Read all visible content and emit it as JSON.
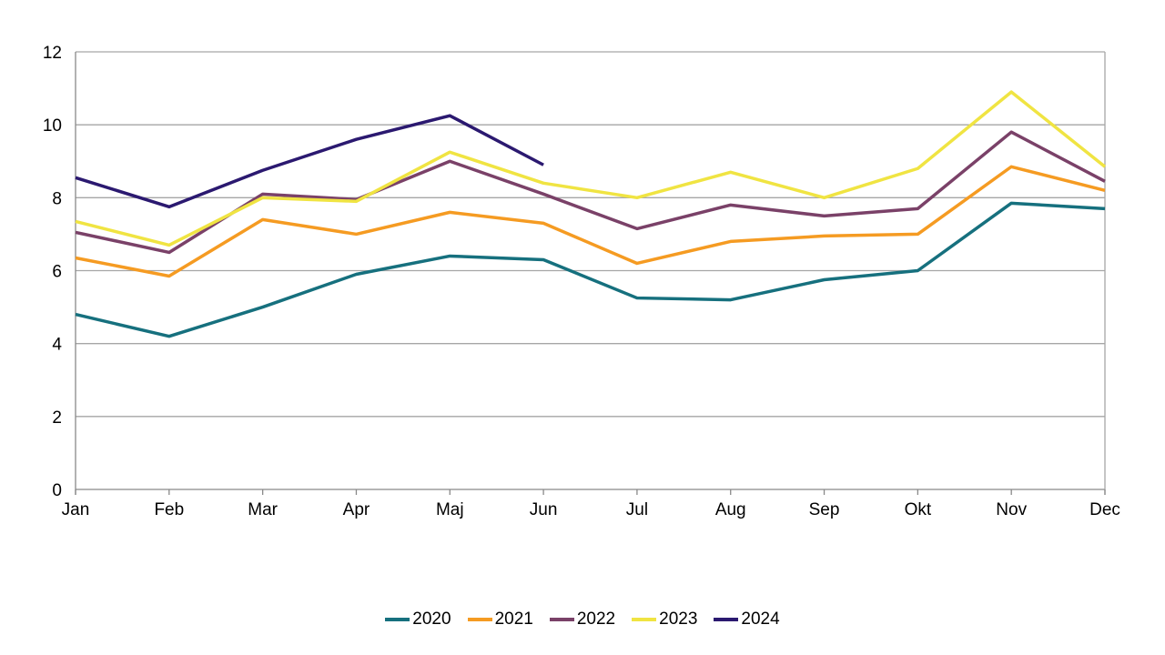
{
  "chart_data": {
    "type": "line",
    "title": "",
    "xlabel": "",
    "ylabel": "",
    "categories": [
      "Jan",
      "Feb",
      "Mar",
      "Apr",
      "Maj",
      "Jun",
      "Jul",
      "Aug",
      "Sep",
      "Okt",
      "Nov",
      "Dec"
    ],
    "series": [
      {
        "name": "2020",
        "color": "#16707E",
        "values": [
          4.8,
          4.2,
          5.0,
          5.9,
          6.4,
          6.3,
          5.25,
          5.2,
          5.75,
          6.0,
          7.85,
          7.7
        ]
      },
      {
        "name": "2021",
        "color": "#F59B22",
        "values": [
          6.35,
          5.85,
          7.4,
          7.0,
          7.6,
          7.3,
          6.2,
          6.8,
          6.95,
          7.0,
          8.85,
          8.2
        ]
      },
      {
        "name": "2022",
        "color": "#7A4168",
        "values": [
          7.05,
          6.5,
          8.1,
          7.95,
          9.0,
          8.1,
          7.15,
          7.8,
          7.5,
          7.7,
          9.8,
          8.45
        ]
      },
      {
        "name": "2023",
        "color": "#F0E442",
        "values": [
          7.35,
          6.7,
          8.0,
          7.9,
          9.25,
          8.4,
          8.0,
          8.7,
          8.0,
          8.8,
          10.9,
          8.85
        ]
      },
      {
        "name": "2024",
        "color": "#2B1970",
        "values": [
          8.55,
          7.75,
          8.75,
          9.6,
          10.25,
          8.9,
          null,
          null,
          null,
          null,
          null,
          null
        ]
      }
    ],
    "ylim": [
      0,
      12
    ],
    "yticks": [
      0,
      2,
      4,
      6,
      8,
      10,
      12
    ],
    "grid": true,
    "legend_position": "bottom",
    "legend_labels": [
      "2020",
      "2021",
      "2022",
      "2023",
      "2024"
    ]
  },
  "styles": {
    "background_color": "#FFFFFF",
    "grid_color": "#A6A6A6",
    "axis_color": "#898989",
    "text_color": "#000000",
    "line_width": 3.5
  }
}
